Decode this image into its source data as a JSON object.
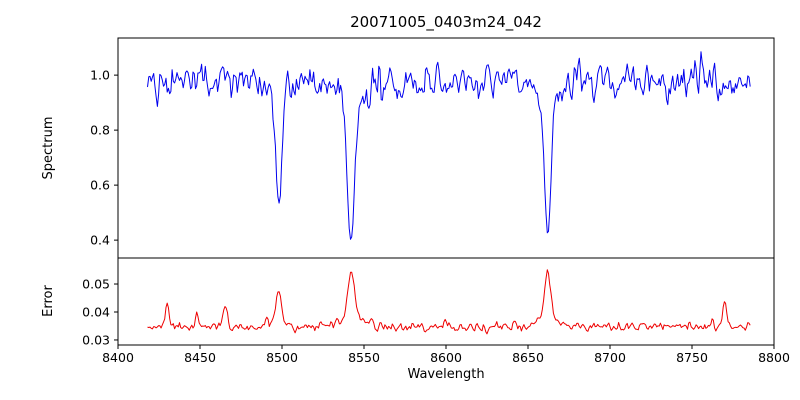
{
  "figure": {
    "background": "#ffffff",
    "frame_color": "#000000"
  },
  "chart_data": {
    "type": "line",
    "title": "20071005_0403m24_042",
    "xlabel": "Wavelength",
    "grid": false,
    "legend": null,
    "xlim": [
      8400,
      8800
    ],
    "xticks": [
      8400,
      8450,
      8500,
      8550,
      8600,
      8650,
      8700,
      8750,
      8800
    ],
    "xtick_labels": [
      "8400",
      "8450",
      "8500",
      "8550",
      "8600",
      "8650",
      "8700",
      "8750",
      "8800"
    ],
    "x_data_range": [
      8418,
      8786
    ],
    "sample_step": 0.75,
    "noise_seed": 20071005,
    "panels": [
      {
        "name": "spectrum",
        "ylabel": "Spectrum",
        "line_color": "#0000ee",
        "ylim": [
          0.335,
          1.135
        ],
        "yticks": [
          0.4,
          0.6,
          0.8,
          1.0
        ],
        "ytick_labels": [
          "0.4",
          "0.6",
          "0.8",
          "1.0"
        ],
        "baseline": 0.98,
        "noise_sigma": 0.033,
        "noise_mode": "relative",
        "features": [
          {
            "center": 8498.0,
            "amplitude": -0.39,
            "sigma": 1.8
          },
          {
            "center": 8498.0,
            "amplitude": -0.05,
            "sigma": 6.0
          },
          {
            "center": 8542.1,
            "amplitude": -0.53,
            "sigma": 2.3
          },
          {
            "center": 8542.1,
            "amplitude": -0.06,
            "sigma": 9.0
          },
          {
            "center": 8662.1,
            "amplitude": -0.49,
            "sigma": 2.1
          },
          {
            "center": 8662.1,
            "amplitude": -0.06,
            "sigma": 8.0
          },
          {
            "center": 8585.0,
            "amplitude": -0.07,
            "sigma": 1.3
          },
          {
            "center": 8690.0,
            "amplitude": -0.09,
            "sigma": 1.3
          }
        ]
      },
      {
        "name": "error",
        "ylabel": "Error",
        "line_color": "#ee0000",
        "ylim": [
          0.0282,
          0.0593
        ],
        "yticks": [
          0.03,
          0.04,
          0.05
        ],
        "ytick_labels": [
          "0.03",
          "0.04",
          "0.05"
        ],
        "baseline": 0.0347,
        "noise_sigma": 0.0009,
        "noise_mode": "absolute",
        "features": [
          {
            "center": 8430.0,
            "amplitude": 0.0085,
            "sigma": 1.2
          },
          {
            "center": 8448.0,
            "amplitude": 0.004,
            "sigma": 1.0
          },
          {
            "center": 8465.0,
            "amplitude": 0.0085,
            "sigma": 1.2
          },
          {
            "center": 8498.0,
            "amplitude": 0.011,
            "sigma": 1.5
          },
          {
            "center": 8498.0,
            "amplitude": 0.002,
            "sigma": 5.0
          },
          {
            "center": 8542.1,
            "amplitude": 0.0175,
            "sigma": 1.8
          },
          {
            "center": 8542.1,
            "amplitude": 0.003,
            "sigma": 8.0
          },
          {
            "center": 8662.1,
            "amplitude": 0.0165,
            "sigma": 1.8
          },
          {
            "center": 8662.1,
            "amplitude": 0.003,
            "sigma": 7.0
          },
          {
            "center": 8600.0,
            "amplitude": 0.002,
            "sigma": 2.0
          },
          {
            "center": 8720.0,
            "amplitude": 0.002,
            "sigma": 1.5
          },
          {
            "center": 8770.0,
            "amplitude": 0.0085,
            "sigma": 1.2
          }
        ]
      }
    ]
  }
}
